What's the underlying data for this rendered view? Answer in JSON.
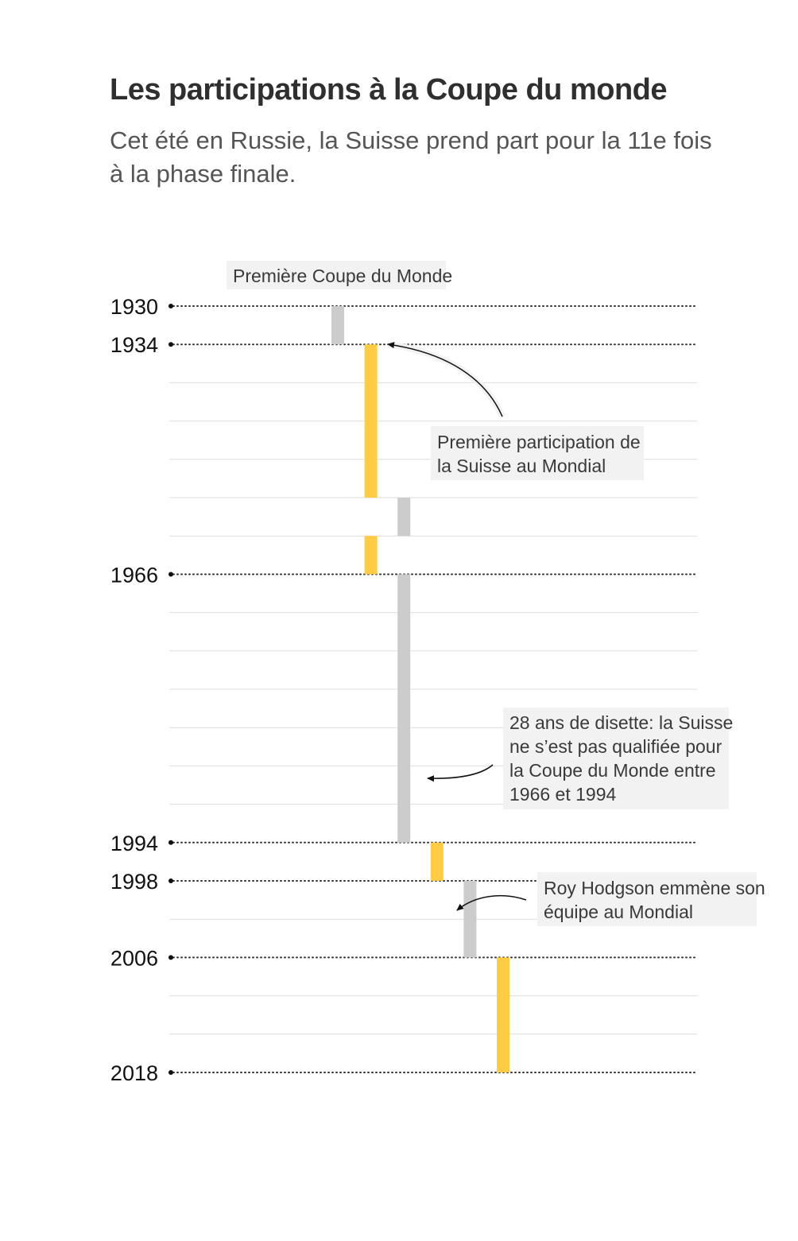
{
  "header": {
    "title": "Les participations à la Coupe du monde",
    "subtitle": "Cet été en Russie, la Suisse prend part pour la 11e fois à la phase finale."
  },
  "chart_data": {
    "type": "bar",
    "orientation": "vertical-timeline",
    "years": [
      1930,
      1934,
      1938,
      1950,
      1954,
      1958,
      1962,
      1966,
      1970,
      1974,
      1978,
      1982,
      1986,
      1990,
      1994,
      1998,
      2002,
      2006,
      2010,
      2014,
      2018
    ],
    "labeled_years": [
      1930,
      1934,
      1966,
      1994,
      1998,
      2006,
      2018
    ],
    "segments": [
      {
        "from": 1930,
        "to": 1934,
        "status": "absent"
      },
      {
        "from": 1934,
        "to": 1962,
        "status": "present"
      },
      {
        "from": 1962,
        "to": 1966,
        "status": "absent"
      },
      {
        "from": 1966,
        "to": 1994,
        "status": "absent"
      },
      {
        "from": 1994,
        "to": 1998,
        "status": "present"
      },
      {
        "from": 1998,
        "to": 2006,
        "status": "absent"
      },
      {
        "from": 2006,
        "to": 2018,
        "status": "present"
      }
    ],
    "colors": {
      "present": "#ffcc44",
      "absent": "#cccccc"
    },
    "annotations": [
      {
        "year": 1930,
        "lines": [
          "Première Coupe du Monde"
        ]
      },
      {
        "year": 1934,
        "lines": [
          "Première participation de",
          "la Suisse au Mondial"
        ]
      },
      {
        "year": 1966,
        "lines": [
          "28 ans de disette: la Suisse",
          "ne s’est pas qualifiée pour",
          "la Coupe du Monde entre",
          "1966 et 1994"
        ]
      },
      {
        "year": 1994,
        "lines": [
          "Roy Hodgson emmène son",
          "équipe au Mondial"
        ]
      }
    ]
  }
}
